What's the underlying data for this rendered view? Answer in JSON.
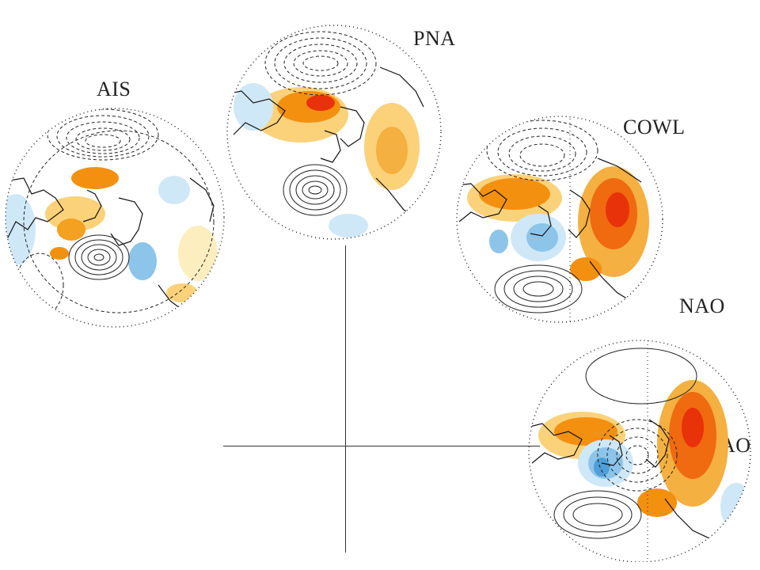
{
  "labels": {
    "pna": "PNA",
    "ais": "AIS",
    "cowl": "COWL",
    "nao": "NAO",
    "ao": "AO"
  },
  "colors": {
    "warm_strong": "#e8320a",
    "warm_mid": "#f4900f",
    "warm_light": "#fbd27a",
    "warm_faint": "#fdeec0",
    "cool_light": "#cfe8f7",
    "cool_mid": "#8cc4ea",
    "cool_strong": "#4f9fd8",
    "contour": "#222222"
  }
}
